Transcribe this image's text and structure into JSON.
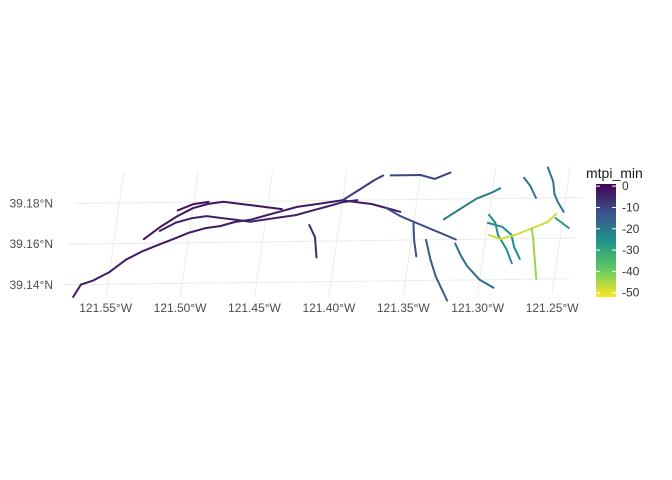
{
  "map": {
    "x_ticks": [
      "121.55°W",
      "121.50°W",
      "121.45°W",
      "121.40°W",
      "121.35°W",
      "121.30°W",
      "121.25°W"
    ],
    "y_ticks": [
      "39.18°N",
      "39.16°N",
      "39.14°N"
    ],
    "grid": true,
    "legend": {
      "title": "mtpi_min",
      "labels": [
        "0",
        "-10",
        "-20",
        "-30",
        "-40",
        "-50"
      ],
      "min": -52,
      "max": 1,
      "placement": "right",
      "palette": [
        "#fde725",
        "#5ec962",
        "#21918c",
        "#3b528b",
        "#440154"
      ]
    }
  },
  "chart_data": {
    "type": "line",
    "title": "",
    "xlabel": "",
    "ylabel": "",
    "color_variable": "mtpi_min",
    "xlim": [
      -121.58,
      -121.24
    ],
    "ylim": [
      39.133,
      39.195
    ],
    "series": [
      {
        "value": -3,
        "lon": [
          -121.572,
          -121.568,
          -121.56,
          -121.55,
          -121.54,
          -121.53,
          -121.52,
          -121.51,
          -121.5,
          -121.49,
          -121.48,
          -121.47,
          -121.46,
          -121.45,
          -121.44,
          -121.43,
          -121.42,
          -121.41,
          -121.4,
          -121.39,
          -121.38,
          -121.37,
          -121.36
        ],
        "lat": [
          39.134,
          39.14,
          39.142,
          39.146,
          39.152,
          39.156,
          39.159,
          39.162,
          39.165,
          39.167,
          39.168,
          39.17,
          39.171,
          39.173,
          39.175,
          39.177,
          39.178,
          39.179,
          39.18,
          39.179,
          39.178,
          39.176,
          39.174
        ]
      },
      {
        "value": -2,
        "lon": [
          -121.53,
          -121.52,
          -121.51,
          -121.5,
          -121.49,
          -121.48,
          -121.47,
          -121.46,
          -121.45,
          -121.44
        ],
        "lat": [
          39.162,
          39.168,
          39.173,
          39.177,
          39.179,
          39.18,
          39.179,
          39.178,
          39.177,
          39.176
        ]
      },
      {
        "value": -4,
        "lon": [
          -121.52,
          -121.51,
          -121.5,
          -121.49,
          -121.48,
          -121.47,
          -121.46,
          -121.45,
          -121.44,
          -121.43,
          -121.42,
          -121.41,
          -121.4,
          -121.39
        ],
        "lat": [
          39.166,
          39.17,
          39.172,
          39.173,
          39.172,
          39.171,
          39.17,
          39.171,
          39.172,
          39.173,
          39.175,
          39.177,
          39.179,
          39.18
        ]
      },
      {
        "value": -2,
        "lon": [
          -121.51,
          -121.5,
          -121.49
        ],
        "lat": [
          39.176,
          39.179,
          39.18
        ]
      },
      {
        "value": -6,
        "lon": [
          -121.42,
          -121.415,
          -121.412
        ],
        "lat": [
          39.168,
          39.162,
          39.152
        ]
      },
      {
        "value": -8,
        "lon": [
          -121.4,
          -121.39,
          -121.38,
          -121.375
        ],
        "lat": [
          39.18,
          39.185,
          39.19,
          39.192
        ]
      },
      {
        "value": -10,
        "lon": [
          -121.37,
          -121.36,
          -121.35,
          -121.34,
          -121.33
        ],
        "lat": [
          39.192,
          39.192,
          39.192,
          39.19,
          39.193
        ]
      },
      {
        "value": -12,
        "lon": [
          -121.37,
          -121.36,
          -121.35,
          -121.34,
          -121.33,
          -121.32
        ],
        "lat": [
          39.176,
          39.172,
          39.169,
          39.166,
          39.163,
          39.16
        ]
      },
      {
        "value": -12,
        "lon": [
          -121.35,
          -121.348,
          -121.345
        ],
        "lat": [
          39.168,
          39.16,
          39.152
        ]
      },
      {
        "value": -14,
        "lon": [
          -121.34,
          -121.335,
          -121.33,
          -121.325,
          -121.32
        ],
        "lat": [
          39.16,
          39.15,
          39.142,
          39.136,
          39.13
        ]
      },
      {
        "value": -22,
        "lon": [
          -121.33,
          -121.32,
          -121.31,
          -121.3,
          -121.295
        ],
        "lat": [
          39.17,
          39.175,
          39.18,
          39.183,
          39.185
        ]
      },
      {
        "value": -25,
        "lon": [
          -121.3,
          -121.295,
          -121.292,
          -121.285,
          -121.28
        ],
        "lat": [
          39.172,
          39.168,
          39.162,
          39.155,
          39.148
        ]
      },
      {
        "value": -18,
        "lon": [
          -121.32,
          -121.315,
          -121.31,
          -121.3,
          -121.29
        ],
        "lat": [
          39.158,
          39.152,
          39.147,
          39.14,
          39.136
        ]
      },
      {
        "value": -24,
        "lon": [
          -121.3,
          -121.29,
          -121.283,
          -121.28,
          -121.275
        ],
        "lat": [
          39.168,
          39.166,
          39.162,
          39.156,
          39.15
        ]
      },
      {
        "value": -48,
        "lon": [
          -121.298,
          -121.29,
          -121.28,
          -121.27,
          -121.26,
          -121.255
        ],
        "lat": [
          39.162,
          39.16,
          39.162,
          39.165,
          39.168,
          39.172
        ]
      },
      {
        "value": -44,
        "lon": [
          -121.27,
          -121.268,
          -121.265,
          -121.262
        ],
        "lat": [
          39.165,
          39.16,
          39.15,
          39.14
        ]
      },
      {
        "value": -20,
        "lon": [
          -121.265,
          -121.26,
          -121.258,
          -121.255,
          -121.25
        ],
        "lat": [
          39.195,
          39.188,
          39.182,
          39.178,
          39.173
        ]
      },
      {
        "value": -20,
        "lon": [
          -121.28,
          -121.275,
          -121.27
        ],
        "lat": [
          39.19,
          39.186,
          39.18
        ]
      },
      {
        "value": -27,
        "lon": [
          -121.255,
          -121.245
        ],
        "lat": [
          39.17,
          39.165
        ]
      }
    ]
  }
}
